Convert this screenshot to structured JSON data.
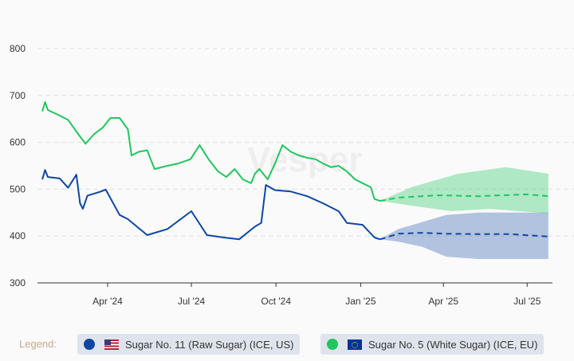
{
  "chart_data": {
    "type": "line",
    "xlabel": "",
    "ylabel": "",
    "ylim": [
      300,
      800
    ],
    "yticks": [
      300,
      400,
      500,
      600,
      700,
      800
    ],
    "xticks": [
      {
        "label": "Apr '24",
        "date": "2024-04-01"
      },
      {
        "label": "Jul '24",
        "date": "2024-07-01"
      },
      {
        "label": "Oct '24",
        "date": "2024-10-01"
      },
      {
        "label": "Jan '25",
        "date": "2025-01-01"
      },
      {
        "label": "Apr '25",
        "date": "2025-04-01"
      },
      {
        "label": "Jul '25",
        "date": "2025-07-01"
      }
    ],
    "grid": "horizontal dashed",
    "watermark": "Vesper",
    "series": [
      {
        "name": "Sugar No. 11 (Raw Sugar) (ICE, US)",
        "color": "#0d47a1",
        "history": [
          [
            "2024-01-21",
            521
          ],
          [
            "2024-01-24",
            541
          ],
          [
            "2024-01-27",
            526
          ],
          [
            "2024-02-09",
            523
          ],
          [
            "2024-02-18",
            503
          ],
          [
            "2024-02-27",
            531
          ],
          [
            "2024-03-02",
            470
          ],
          [
            "2024-03-05",
            458
          ],
          [
            "2024-03-10",
            486
          ],
          [
            "2024-03-23",
            494
          ],
          [
            "2024-03-30",
            499
          ],
          [
            "2024-04-14",
            445
          ],
          [
            "2024-04-23",
            436
          ],
          [
            "2024-05-14",
            402
          ],
          [
            "2024-06-05",
            415
          ],
          [
            "2024-07-01",
            453
          ],
          [
            "2024-07-18",
            402
          ],
          [
            "2024-08-05",
            397
          ],
          [
            "2024-08-22",
            393
          ],
          [
            "2024-09-08",
            420
          ],
          [
            "2024-09-15",
            428
          ],
          [
            "2024-09-20",
            509
          ],
          [
            "2024-09-30",
            498
          ],
          [
            "2024-10-17",
            495
          ],
          [
            "2024-11-04",
            485
          ],
          [
            "2024-11-21",
            470
          ],
          [
            "2024-12-08",
            453
          ],
          [
            "2024-12-17",
            428
          ],
          [
            "2025-01-03",
            424
          ],
          [
            "2025-01-16",
            397
          ],
          [
            "2025-01-22",
            393
          ]
        ],
        "forecast": [
          [
            "2025-01-22",
            393
          ],
          [
            "2025-02-11",
            405
          ],
          [
            "2025-03-09",
            407
          ],
          [
            "2025-04-04",
            405
          ],
          [
            "2025-05-09",
            404
          ],
          [
            "2025-06-13",
            404
          ],
          [
            "2025-07-24",
            399
          ]
        ],
        "forecast_upper": [
          [
            "2025-01-22",
            393
          ],
          [
            "2025-02-11",
            415
          ],
          [
            "2025-03-09",
            430
          ],
          [
            "2025-04-04",
            445
          ],
          [
            "2025-05-09",
            450
          ],
          [
            "2025-06-13",
            450
          ],
          [
            "2025-07-24",
            450
          ]
        ],
        "forecast_lower": [
          [
            "2025-01-22",
            393
          ],
          [
            "2025-02-11",
            388
          ],
          [
            "2025-03-09",
            377
          ],
          [
            "2025-04-04",
            356
          ],
          [
            "2025-05-09",
            351
          ],
          [
            "2025-06-13",
            351
          ],
          [
            "2025-07-24",
            351
          ]
        ]
      },
      {
        "name": "Sugar No. 5 (White Sugar) (ICE, EU)",
        "color": "#22c55e",
        "history": [
          [
            "2024-01-21",
            666
          ],
          [
            "2024-01-24",
            686
          ],
          [
            "2024-01-27",
            669
          ],
          [
            "2024-02-09",
            657
          ],
          [
            "2024-02-18",
            648
          ],
          [
            "2024-02-27",
            623
          ],
          [
            "2024-03-08",
            597
          ],
          [
            "2024-03-17",
            617
          ],
          [
            "2024-03-27",
            632
          ],
          [
            "2024-04-04",
            652
          ],
          [
            "2024-04-14",
            652
          ],
          [
            "2024-04-23",
            628
          ],
          [
            "2024-04-27",
            572
          ],
          [
            "2024-05-05",
            580
          ],
          [
            "2024-05-14",
            583
          ],
          [
            "2024-05-22",
            543
          ],
          [
            "2024-06-05",
            550
          ],
          [
            "2024-06-17",
            555
          ],
          [
            "2024-06-30",
            564
          ],
          [
            "2024-07-10",
            594
          ],
          [
            "2024-07-20",
            563
          ],
          [
            "2024-07-30",
            538
          ],
          [
            "2024-08-08",
            526
          ],
          [
            "2024-08-17",
            543
          ],
          [
            "2024-08-26",
            521
          ],
          [
            "2024-09-04",
            513
          ],
          [
            "2024-09-08",
            533
          ],
          [
            "2024-09-13",
            543
          ],
          [
            "2024-09-22",
            521
          ],
          [
            "2024-09-30",
            555
          ],
          [
            "2024-10-08",
            594
          ],
          [
            "2024-10-17",
            580
          ],
          [
            "2024-10-26",
            572
          ],
          [
            "2024-11-04",
            567
          ],
          [
            "2024-11-13",
            564
          ],
          [
            "2024-11-21",
            555
          ],
          [
            "2024-11-30",
            547
          ],
          [
            "2024-12-08",
            550
          ],
          [
            "2024-12-17",
            538
          ],
          [
            "2024-12-26",
            521
          ],
          [
            "2025-01-03",
            513
          ],
          [
            "2025-01-12",
            504
          ],
          [
            "2025-01-16",
            479
          ],
          [
            "2025-01-22",
            475
          ]
        ],
        "forecast": [
          [
            "2025-01-22",
            475
          ],
          [
            "2025-02-11",
            482
          ],
          [
            "2025-03-27",
            487
          ],
          [
            "2025-05-09",
            485
          ],
          [
            "2025-06-30",
            489
          ],
          [
            "2025-07-24",
            485
          ]
        ],
        "forecast_upper": [
          [
            "2025-01-22",
            475
          ],
          [
            "2025-02-25",
            504
          ],
          [
            "2025-04-17",
            533
          ],
          [
            "2025-06-08",
            547
          ],
          [
            "2025-07-24",
            533
          ]
        ],
        "forecast_lower": [
          [
            "2025-01-22",
            475
          ],
          [
            "2025-02-25",
            465
          ],
          [
            "2025-04-09",
            453
          ],
          [
            "2025-05-22",
            458
          ],
          [
            "2025-07-24",
            448
          ]
        ]
      }
    ]
  },
  "legend": {
    "label": "Legend:",
    "items": [
      {
        "label": "Sugar No. 11 (Raw Sugar) (ICE, US)",
        "color": "#0d47a1",
        "flag": "us-flag-icon"
      },
      {
        "label": "Sugar No. 5 (White Sugar) (ICE, EU)",
        "color": "#22c55e",
        "flag": "eu-flag-icon"
      }
    ]
  }
}
